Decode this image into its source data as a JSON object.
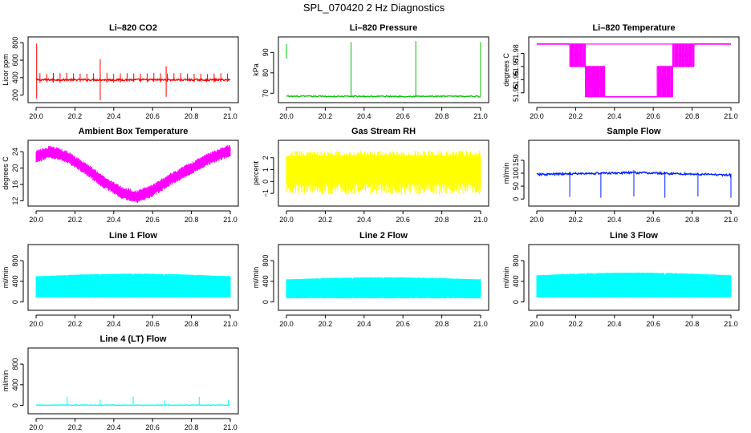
{
  "page_title": "SPL_070420  2 Hz Diagnostics",
  "chart_data": [
    {
      "id": "co2",
      "type": "line",
      "title": "Li–820 CO2",
      "ylabel": "Licor ppm",
      "color": "#ff0000",
      "xlim": [
        20.0,
        21.0
      ],
      "ylim": [
        150,
        830
      ],
      "xticks": [
        20.0,
        20.2,
        20.4,
        20.6,
        20.8,
        21.0
      ],
      "xtick_labels": [
        "20.0",
        "20.2",
        "20.4",
        "20.6",
        "20.8",
        "21.0"
      ],
      "yticks": [
        200,
        400,
        600,
        800
      ],
      "ytick_labels": [
        "200",
        "400",
        "600",
        "800"
      ],
      "pattern": "noise",
      "base": 375,
      "amp": 10,
      "density": 360,
      "spikes": [
        [
          20.003,
          160,
          790
        ],
        [
          20.33,
          140,
          610
        ],
        [
          20.67,
          180,
          530
        ]
      ],
      "tallTicks": {
        "every": 0.0345,
        "top": 455,
        "bottom": 340
      }
    },
    {
      "id": "pressure",
      "type": "line",
      "title": "Li–820 Pressure",
      "ylabel": "kPa",
      "color": "#00c000",
      "xlim": [
        20.0,
        21.0
      ],
      "ylim": [
        67,
        96
      ],
      "xticks": [
        20.0,
        20.2,
        20.4,
        20.6,
        20.8,
        21.0
      ],
      "xtick_labels": [
        "20.0",
        "20.2",
        "20.4",
        "20.6",
        "20.8",
        "21.0"
      ],
      "yticks": [
        70,
        80,
        90
      ],
      "ytick_labels": [
        "70",
        "80",
        "90"
      ],
      "pattern": "noise",
      "base": 68.5,
      "amp": 0.3,
      "density": 200,
      "spikes": [
        [
          20.0,
          87,
          94
        ],
        [
          20.333,
          68.5,
          95
        ],
        [
          20.666,
          68.5,
          95.5
        ],
        [
          21.0,
          68.5,
          95
        ]
      ],
      "tallTicks": null
    },
    {
      "id": "licor-temp",
      "type": "step",
      "title": "Li–820 Temperature",
      "ylabel": "degrees C",
      "color": "#ff00ff",
      "xlim": [
        20.0,
        21.0
      ],
      "ylim": [
        51.945,
        51.99
      ],
      "xticks": [
        20.0,
        20.2,
        20.4,
        20.6,
        20.8,
        21.0
      ],
      "xtick_labels": [
        "20.0",
        "20.2",
        "20.4",
        "20.6",
        "20.8",
        "21.0"
      ],
      "yticks": [
        51.95,
        51.96,
        51.97,
        51.98
      ],
      "ytick_labels": [
        "51.95",
        "51.96",
        "51.97",
        "51.98"
      ],
      "pattern": "temperature_steps",
      "levels": [
        51.987,
        51.97,
        51.947
      ],
      "segments": [
        [
          20.0,
          20.17,
          0,
          0
        ],
        [
          20.17,
          20.25,
          0,
          1
        ],
        [
          20.25,
          20.35,
          1,
          2
        ],
        [
          20.35,
          20.62,
          2,
          2
        ],
        [
          20.62,
          20.7,
          1,
          2
        ],
        [
          20.7,
          20.81,
          0,
          1
        ],
        [
          20.81,
          21.0,
          0,
          0
        ]
      ]
    },
    {
      "id": "ambient-temp",
      "type": "line",
      "title": "Ambient Box Temperature",
      "ylabel": "degrees C",
      "color": "#ff00ff",
      "xlim": [
        20.0,
        21.0
      ],
      "ylim": [
        11.5,
        26
      ],
      "xticks": [
        20.0,
        20.2,
        20.4,
        20.6,
        20.8,
        21.0
      ],
      "xtick_labels": [
        "20.0",
        "20.2",
        "20.4",
        "20.6",
        "20.8",
        "21.0"
      ],
      "yticks": [
        12,
        16,
        20,
        24
      ],
      "ytick_labels": [
        "12",
        "16",
        "20",
        "24"
      ],
      "pattern": "curve_band",
      "band": 1.3,
      "curve": [
        [
          20.0,
          22.8
        ],
        [
          20.07,
          24.0
        ],
        [
          20.15,
          23.0
        ],
        [
          20.25,
          20.0
        ],
        [
          20.35,
          16.5
        ],
        [
          20.45,
          13.8
        ],
        [
          20.52,
          13.0
        ],
        [
          20.6,
          14.5
        ],
        [
          20.7,
          17.5
        ],
        [
          20.8,
          20.0
        ],
        [
          20.9,
          22.5
        ],
        [
          21.0,
          24.3
        ]
      ]
    },
    {
      "id": "gas-rh",
      "type": "line",
      "title": "Gas Stream RH",
      "ylabel": "percent",
      "color": "#ffff00",
      "xlim": [
        20.0,
        21.0
      ],
      "ylim": [
        -1.8,
        3.2
      ],
      "xticks": [
        20.0,
        20.2,
        20.4,
        20.6,
        20.8,
        21.0
      ],
      "xtick_labels": [
        "20.0",
        "20.2",
        "20.4",
        "20.6",
        "20.8",
        "21.0"
      ],
      "yticks": [
        -1,
        0,
        1,
        2
      ],
      "ytick_labels": [
        "−1",
        "0",
        "1",
        "2"
      ],
      "pattern": "dense_noise",
      "base": 1.0,
      "amp": 1.4,
      "density": 420
    },
    {
      "id": "sample-flow",
      "type": "line",
      "title": "Sample Flow",
      "ylabel": "ml/min",
      "color": "#0020ff",
      "xlim": [
        20.0,
        21.0
      ],
      "ylim": [
        -15,
        215
      ],
      "xticks": [
        20.0,
        20.2,
        20.4,
        20.6,
        20.8,
        21.0
      ],
      "xtick_labels": [
        "20.0",
        "20.2",
        "20.4",
        "20.6",
        "20.8",
        "21.0"
      ],
      "yticks": [
        0,
        50,
        100,
        150
      ],
      "ytick_labels": [
        "0",
        "50",
        "100",
        "150"
      ],
      "pattern": "noise",
      "base": 95,
      "amp": 4,
      "density": 300,
      "baseCurve": [
        [
          20.0,
          95
        ],
        [
          20.5,
          102
        ],
        [
          21.0,
          93
        ]
      ],
      "spikes": [
        [
          20.17,
          8,
          105
        ],
        [
          20.33,
          5,
          103
        ],
        [
          20.5,
          10,
          112
        ],
        [
          20.66,
          5,
          106
        ],
        [
          20.83,
          10,
          100
        ],
        [
          21.0,
          5,
          98
        ]
      ]
    },
    {
      "id": "line1-flow",
      "type": "line",
      "title": "Line 1 Flow",
      "ylabel": "ml/min",
      "color": "#00ffff",
      "xlim": [
        20.0,
        21.0
      ],
      "ylim": [
        -100,
        1050
      ],
      "xticks": [
        20.0,
        20.2,
        20.4,
        20.6,
        20.8,
        21.0
      ],
      "xtick_labels": [
        "20.0",
        "20.2",
        "20.4",
        "20.6",
        "20.8",
        "21.0"
      ],
      "yticks": [
        0,
        400,
        800
      ],
      "ytick_labels": [
        "0",
        "400",
        "800"
      ],
      "pattern": "flow_band",
      "low": 95,
      "high": 490,
      "highMid": 540,
      "gaps": [
        20.16,
        20.33,
        20.5,
        20.66,
        20.82,
        20.99
      ]
    },
    {
      "id": "line2-flow",
      "type": "line",
      "title": "Line 2 Flow",
      "ylabel": "ml/min",
      "color": "#00ffff",
      "xlim": [
        20.0,
        21.0
      ],
      "ylim": [
        -100,
        1050
      ],
      "xticks": [
        20.0,
        20.2,
        20.4,
        20.6,
        20.8,
        21.0
      ],
      "xtick_labels": [
        "20.0",
        "20.2",
        "20.4",
        "20.6",
        "20.8",
        "21.0"
      ],
      "yticks": [
        0,
        400,
        800
      ],
      "ytick_labels": [
        "0",
        "400",
        "800"
      ],
      "pattern": "flow_band",
      "low": 80,
      "high": 430,
      "highMid": 470,
      "gaps": [
        20.17,
        20.34,
        20.5,
        20.67,
        20.73,
        20.78,
        20.83,
        20.86,
        20.9,
        21.0
      ]
    },
    {
      "id": "line3-flow",
      "type": "line",
      "title": "Line 3 Flow",
      "ylabel": "ml/min",
      "color": "#00ffff",
      "xlim": [
        20.0,
        21.0
      ],
      "ylim": [
        -100,
        1050
      ],
      "xticks": [
        20.0,
        20.2,
        20.4,
        20.6,
        20.8,
        21.0
      ],
      "xtick_labels": [
        "20.0",
        "20.2",
        "20.4",
        "20.6",
        "20.8",
        "21.0"
      ],
      "yticks": [
        0,
        400,
        800
      ],
      "ytick_labels": [
        "0",
        "400",
        "800"
      ],
      "pattern": "flow_band",
      "low": 95,
      "high": 510,
      "highMid": 560,
      "gaps": [
        20.15,
        20.2,
        20.25,
        20.3,
        20.66,
        20.73,
        20.78,
        20.83,
        20.88,
        20.99
      ]
    },
    {
      "id": "line4-flow",
      "type": "line",
      "title": "Line 4 (LT) Flow",
      "ylabel": "ml/min",
      "color": "#00ffff",
      "xlim": [
        20.0,
        21.0
      ],
      "ylim": [
        -100,
        1050
      ],
      "xticks": [
        20.0,
        20.2,
        20.4,
        20.6,
        20.8,
        21.0
      ],
      "xtick_labels": [
        "20.0",
        "20.2",
        "20.4",
        "20.6",
        "20.8",
        "21.0"
      ],
      "yticks": [
        0,
        400,
        800
      ],
      "ytick_labels": [
        "0",
        "400",
        "800"
      ],
      "pattern": "noise",
      "base": 5,
      "amp": 5,
      "density": 150,
      "spikes": [
        [
          20.16,
          5,
          170
        ],
        [
          20.33,
          5,
          110
        ],
        [
          20.5,
          5,
          170
        ],
        [
          20.66,
          5,
          95
        ],
        [
          20.84,
          5,
          165
        ],
        [
          20.99,
          5,
          110
        ]
      ]
    }
  ]
}
